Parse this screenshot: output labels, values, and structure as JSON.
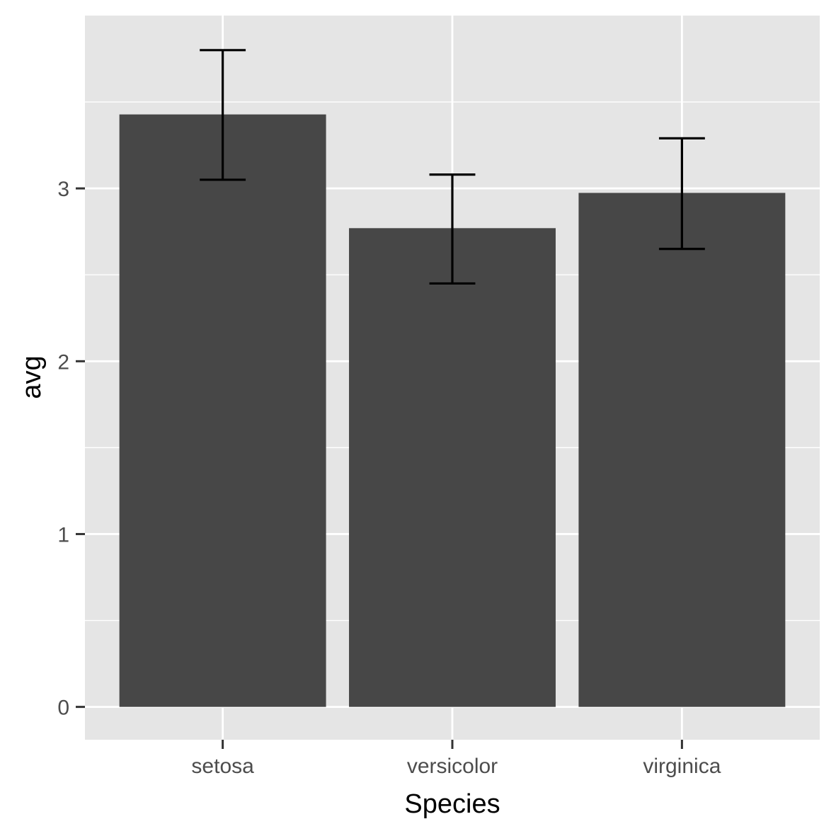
{
  "chart_data": {
    "type": "bar",
    "title": "",
    "xlabel": "Species",
    "ylabel": "avg",
    "categories": [
      "setosa",
      "versicolor",
      "virginica"
    ],
    "values": [
      3.428,
      2.77,
      2.974
    ],
    "error_bars": {
      "lower": [
        3.05,
        2.45,
        2.65
      ],
      "upper": [
        3.8,
        3.08,
        3.29
      ]
    },
    "ylim": [
      -0.19,
      4.0
    ],
    "y_ticks": [
      0,
      1,
      2,
      3
    ],
    "y_tick_labels": [
      "0",
      "1",
      "2",
      "3"
    ],
    "grid": true,
    "legend": "none",
    "colors": {
      "panel_background": "#e5e5e5",
      "grid": "#ffffff",
      "bar_fill": "#474747",
      "error_bar": "#000000",
      "tick_text": "#4d4d4d",
      "tick_mark": "#333333",
      "axis_title": "#000000"
    }
  }
}
